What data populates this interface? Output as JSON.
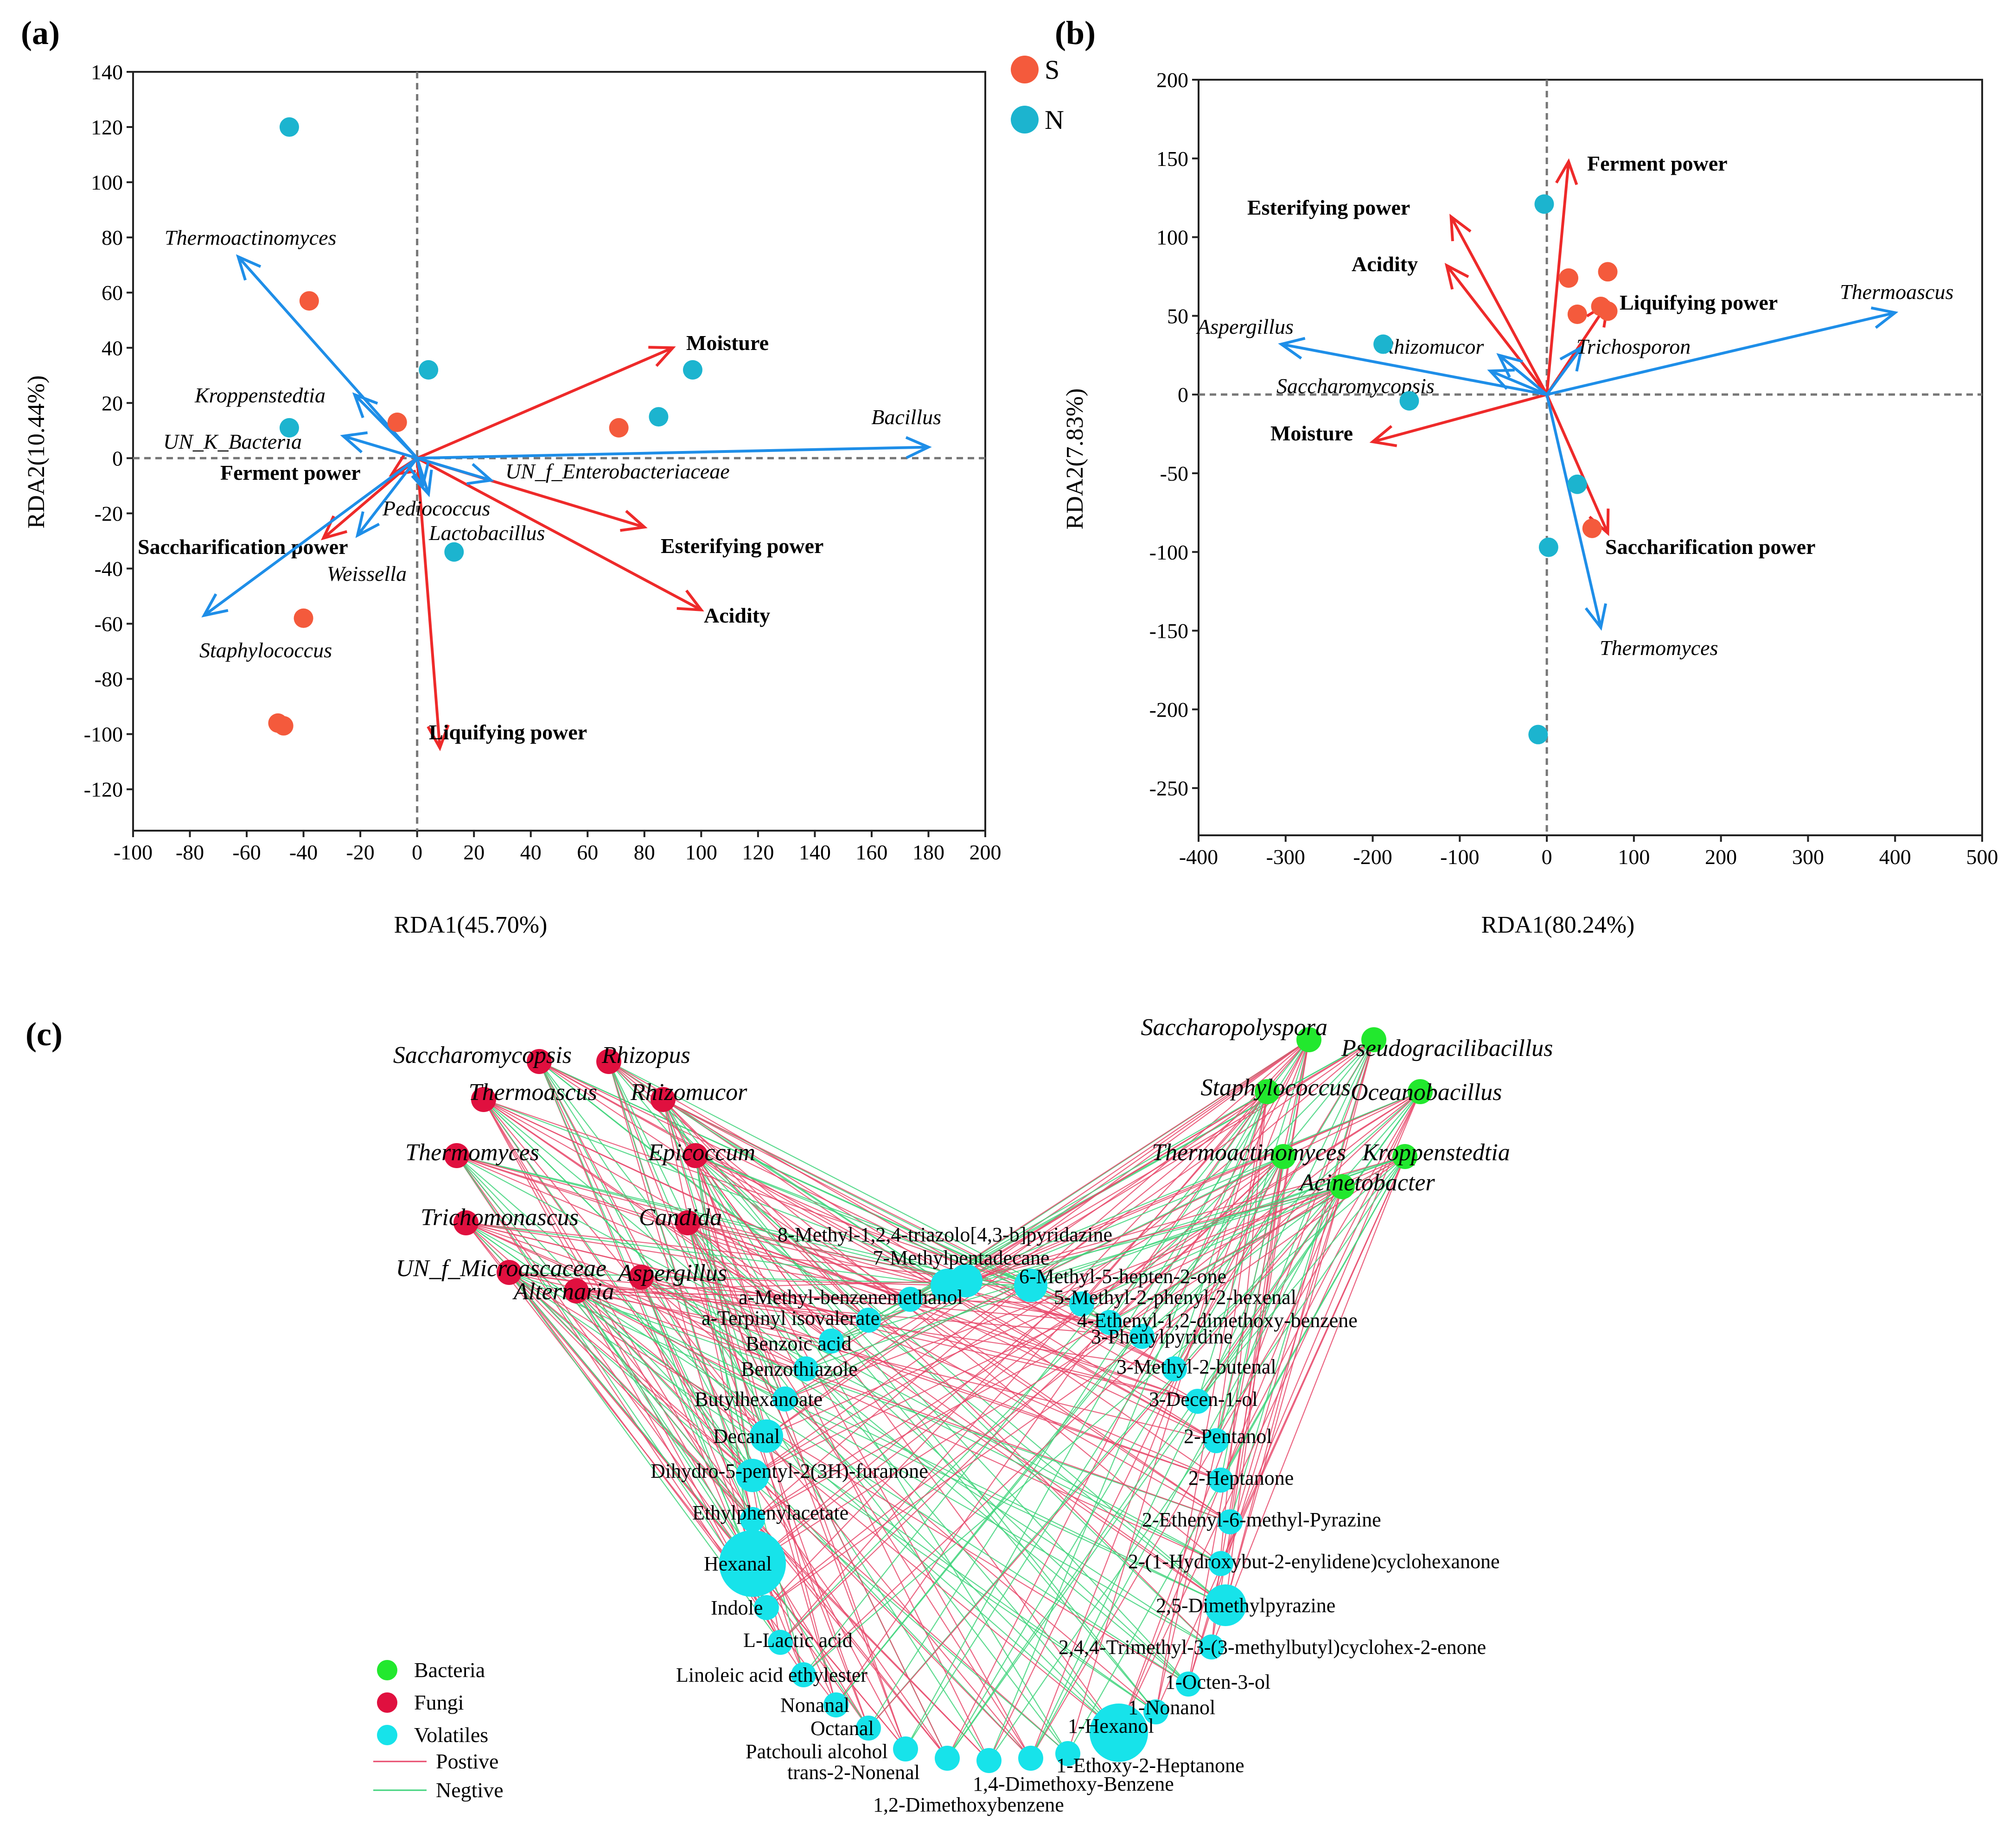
{
  "colors": {
    "S": "#f45a3c",
    "N": "#1cb4cf",
    "env_arrow": "#ee2a2a",
    "species_arrow": "#1e8ee8",
    "bacteria": "#22e82e",
    "fungi": "#e0103f",
    "volatiles": "#17e3ea",
    "positive": "#e8496b",
    "negative": "#3ed37a"
  },
  "panels": {
    "a": "(a)",
    "b": "(b)",
    "c": "(c)"
  },
  "chart_data": [
    {
      "type": "scatter",
      "title": "(a)",
      "xlabel": "RDA1(45.70%)",
      "ylabel": "RDA2(10.44%)",
      "xlim": [
        -100,
        200
      ],
      "ylim": [
        -135,
        140
      ],
      "xticks": [
        -100,
        -80,
        -60,
        -40,
        -20,
        0,
        20,
        40,
        60,
        80,
        100,
        120,
        140,
        160,
        180,
        200
      ],
      "yticks": [
        -120,
        -100,
        -80,
        -60,
        -40,
        -20,
        0,
        20,
        40,
        60,
        80,
        100,
        120,
        140
      ],
      "grid": false,
      "zero_lines": true,
      "legend": {
        "position": "top-right",
        "entries": [
          "S",
          "N"
        ]
      },
      "series": [
        {
          "name": "S",
          "points": [
            [
              -38,
              57
            ],
            [
              -7,
              13
            ],
            [
              71,
              11
            ],
            [
              -40,
              -58
            ],
            [
              -49,
              -96
            ],
            [
              -47,
              -97
            ]
          ]
        },
        {
          "name": "N",
          "points": [
            [
              -45,
              120
            ],
            [
              4,
              32
            ],
            [
              97,
              32
            ],
            [
              85,
              15
            ],
            [
              -45,
              11
            ],
            [
              13,
              -34
            ]
          ]
        }
      ],
      "env_vectors": [
        {
          "label": "Moisture",
          "x": 90,
          "y": 40
        },
        {
          "label": "Esterifying power",
          "x": 80,
          "y": -25
        },
        {
          "label": "Acidity",
          "x": 100,
          "y": -55
        },
        {
          "label": "Liquifying power",
          "x": 8,
          "y": -105
        },
        {
          "label": "Saccharification power",
          "x": -33,
          "y": -29
        },
        {
          "label": "Ferment power",
          "x": -9,
          "y": -6
        }
      ],
      "species_vectors": [
        {
          "label": "Bacillus",
          "x": 180,
          "y": 4
        },
        {
          "label": "Thermoactinomyces",
          "x": -63,
          "y": 73
        },
        {
          "label": "Kroppenstedtia",
          "x": -22,
          "y": 23
        },
        {
          "label": "UN_K_Bacteria",
          "x": -26,
          "y": 8
        },
        {
          "label": "UN_f_Enterobacteriaceae",
          "x": 26,
          "y": -8
        },
        {
          "label": "Pediococcus",
          "x": 2,
          "y": -10
        },
        {
          "label": "Lactobacillus",
          "x": 4,
          "y": -13
        },
        {
          "label": "Weissella",
          "x": -21,
          "y": -28
        },
        {
          "label": "Staphylococcus",
          "x": -75,
          "y": -57
        }
      ]
    },
    {
      "type": "scatter",
      "title": "(b)",
      "xlabel": "RDA1(80.24%)",
      "ylabel": "RDA2(7.83%)",
      "xlim": [
        -400,
        500
      ],
      "ylim": [
        -280,
        200
      ],
      "xticks": [
        -400,
        -300,
        -200,
        -100,
        0,
        100,
        200,
        300,
        400,
        500
      ],
      "yticks": [
        -250,
        -200,
        -150,
        -100,
        -50,
        0,
        50,
        100,
        150,
        200
      ],
      "grid": false,
      "zero_lines": true,
      "series": [
        {
          "name": "S",
          "points": [
            [
              25,
              74
            ],
            [
              70,
              78
            ],
            [
              35,
              51
            ],
            [
              62,
              56
            ],
            [
              70,
              53
            ],
            [
              52,
              -85
            ]
          ]
        },
        {
          "name": "N",
          "points": [
            [
              -3,
              121
            ],
            [
              -188,
              32
            ],
            [
              -158,
              -4
            ],
            [
              35,
              -57
            ],
            [
              2,
              -97
            ],
            [
              -10,
              -216
            ]
          ]
        }
      ],
      "env_vectors": [
        {
          "label": "Ferment power",
          "x": 25,
          "y": 148
        },
        {
          "label": "Esterifying power",
          "x": -110,
          "y": 113
        },
        {
          "label": "Acidity",
          "x": -115,
          "y": 82
        },
        {
          "label": "Liquifying power",
          "x": 70,
          "y": 58
        },
        {
          "label": "Moisture",
          "x": -200,
          "y": -30
        },
        {
          "label": "Saccharification power",
          "x": 70,
          "y": -88
        }
      ],
      "species_vectors": [
        {
          "label": "Thermoascus",
          "x": 400,
          "y": 52
        },
        {
          "label": "Aspergillus",
          "x": -305,
          "y": 32
        },
        {
          "label": "Rhizomucor",
          "x": -55,
          "y": 25
        },
        {
          "label": "Saccharomycopsis",
          "x": -65,
          "y": 15
        },
        {
          "label": "Trichosporon",
          "x": 40,
          "y": 30
        },
        {
          "label": "Thermomyces",
          "x": 62,
          "y": -148
        }
      ]
    },
    {
      "type": "network",
      "title": "(c)",
      "legend": {
        "position": "bottom-left",
        "entries": [
          "Bacteria",
          "Fungi",
          "Volatiles",
          "Postive",
          "Negtive"
        ]
      },
      "fungi": [
        "Saccharomycopsis",
        "Rhizopus",
        "Thermoascus",
        "Rhizomucor",
        "Thermomyces",
        "Epicoccum",
        "Trichomonascus",
        "Candida",
        "UN_f_Microascaceae",
        "Aspergillus",
        "Alternaria"
      ],
      "bacteria": [
        "Saccharopolyspora",
        "Pseudogracilibacillus",
        "Staphylococcus",
        "Oceanobacillus",
        "Thermoactinomyces",
        "Kroppenstedtia",
        "Acinetobacter"
      ],
      "volatiles": [
        "8-Methyl-1,2,4-triazolo[4,3-b]pyridazine",
        "7-Methylpentadecane",
        "6-Methyl-5-hepten-2-one",
        "5-Methyl-2-phenyl-2-hexenal",
        "4-Ethenyl-1,2-dimethoxy-benzene",
        "3-Phenylpyridine",
        "3-Methyl-2-butenal",
        "3-Decen-1-ol",
        "2-Pentanol",
        "2-Heptanone",
        "2-Ethenyl-6-methyl-Pyrazine",
        "2-(1-Hydroxybut-2-enylidene)cyclohexanone",
        "2,5-Dimethylpyrazine",
        "2,4,4-Trimethyl-3-(3-methylbutyl)cyclohex-2-enone",
        "1-Octen-3-ol",
        "1-Nonanol",
        "1-Hexanol",
        "1-Ethoxy-2-Heptanone",
        "1,4-Dimethoxy-Benzene",
        "1,2-Dimethoxybenzene",
        "trans-2-Nonenal",
        "Patchouli alcohol",
        "Octanal",
        "Nonanal",
        "Linoleic acid ethylester",
        "L-Lactic acid",
        "Indole",
        "Hexanal",
        "Ethylphenylacetate",
        "Dihydro-5-pentyl-2(3H)-furanone",
        "Decanal",
        "Butylhexanoate",
        "Benzothiazole",
        "Benzoic acid",
        "a-Terpinyl isovalerate",
        "a-Methyl-benzenemethanol"
      ]
    }
  ]
}
